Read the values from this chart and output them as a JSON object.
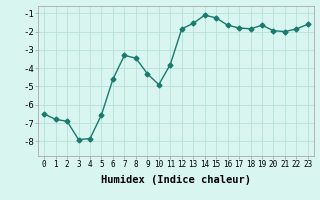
{
  "x": [
    0,
    1,
    2,
    3,
    4,
    5,
    6,
    7,
    8,
    9,
    10,
    11,
    12,
    13,
    14,
    15,
    16,
    17,
    18,
    19,
    20,
    21,
    22,
    23
  ],
  "y": [
    -6.5,
    -6.8,
    -6.9,
    -7.9,
    -7.85,
    -6.55,
    -4.6,
    -3.3,
    -3.45,
    -4.3,
    -4.9,
    -3.8,
    -1.85,
    -1.55,
    -1.1,
    -1.25,
    -1.65,
    -1.8,
    -1.85,
    -1.65,
    -1.95,
    -2.0,
    -1.85,
    -1.6
  ],
  "line_color": "#1a7a6e",
  "marker": "D",
  "markersize": 2.5,
  "linewidth": 1.0,
  "bg_color": "#d8f5f0",
  "grid_color": "#b8e0da",
  "xlabel": "Humidex (Indice chaleur)",
  "xlabel_fontsize": 7.5,
  "xlabel_bold": true,
  "ylim": [
    -8.8,
    -0.6
  ],
  "xlim": [
    -0.5,
    23.5
  ],
  "yticks": [
    -8,
    -7,
    -6,
    -5,
    -4,
    -3,
    -2,
    -1
  ],
  "xtick_fontsize": 5.5,
  "ytick_fontsize": 6.5
}
